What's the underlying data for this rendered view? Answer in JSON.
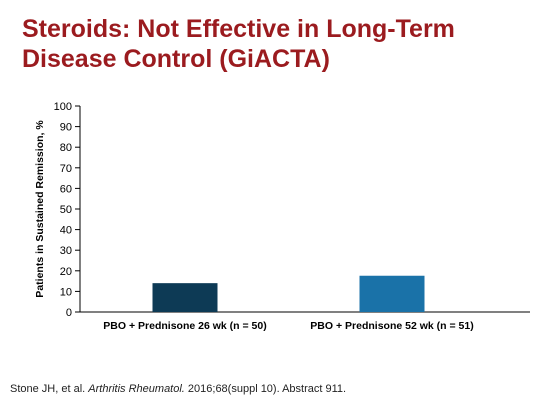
{
  "slide": {
    "title_line1": "Steroids: Not Effective in Long-Term",
    "title_line2": "Disease Control (GiACTA)",
    "title_color": "#9b1b1f"
  },
  "citation": {
    "authors": "Stone JH, et al. ",
    "journal": "Arthritis Rheumatol.",
    "rest": " 2016;68(suppl 10). Abstract 911."
  },
  "chart_data": {
    "type": "bar",
    "categories": [
      "PBO + Prednisone 26 wk (n = 50)",
      "PBO + Prednisone 52 wk (n = 51)"
    ],
    "values": [
      14,
      17.6
    ],
    "bar_colors": [
      "#0d3a55",
      "#1a72a8"
    ],
    "ylabel": "Patients in Sustained Remission, %",
    "ylim": [
      0,
      100
    ],
    "yticks": [
      0,
      10,
      20,
      30,
      40,
      50,
      60,
      70,
      80,
      90,
      100
    ],
    "grid": false
  }
}
